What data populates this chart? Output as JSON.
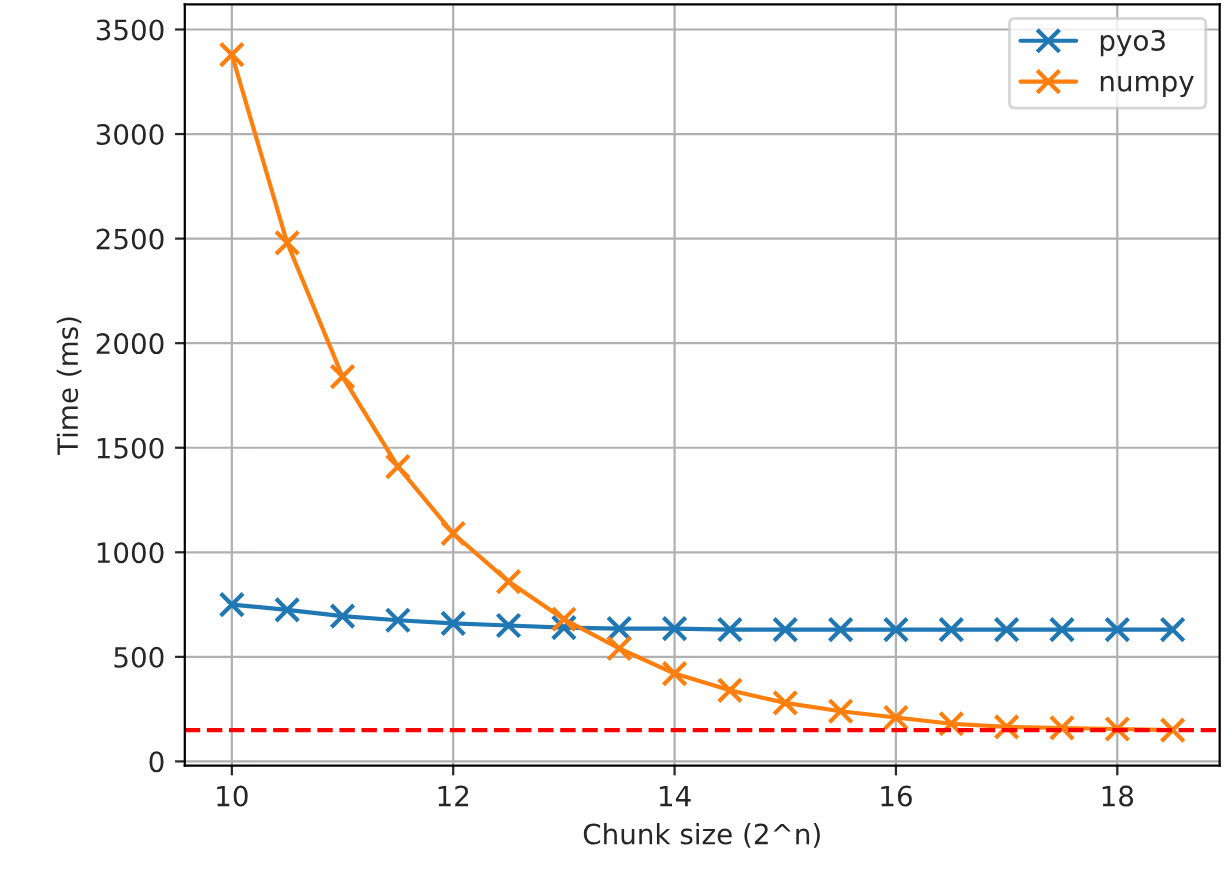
{
  "chart_data": {
    "type": "line",
    "xlabel": "Chunk size (2^n)",
    "ylabel": "Time (ms)",
    "x": [
      10,
      10.5,
      11,
      11.5,
      12,
      12.5,
      13,
      13.5,
      14,
      14.5,
      15,
      15.5,
      16,
      16.5,
      17,
      17.5,
      18,
      18.5
    ],
    "series": [
      {
        "name": "pyo3",
        "color": "#1f77b4",
        "values": [
          750,
          725,
          695,
          675,
          660,
          650,
          640,
          635,
          635,
          630,
          630,
          630,
          630,
          630,
          630,
          630,
          630,
          630
        ]
      },
      {
        "name": "numpy",
        "color": "#ff7f0e",
        "values": [
          3380,
          2480,
          1840,
          1410,
          1090,
          860,
          680,
          540,
          420,
          340,
          280,
          240,
          210,
          180,
          165,
          160,
          155,
          150
        ]
      }
    ],
    "ref_lines": [
      {
        "axis": "y",
        "value": 150,
        "color": "#ff0000",
        "line_style": "dashed"
      }
    ],
    "xlim": [
      9.575,
      18.925
    ],
    "xticks": [
      10,
      12,
      14,
      16,
      18
    ],
    "ylim": [
      -20,
      3620
    ],
    "yticks": [
      0,
      500,
      1000,
      1500,
      2000,
      2500,
      3000,
      3500
    ],
    "grid": true,
    "legend": "top right",
    "marker": "cross",
    "line_style": "solid"
  }
}
